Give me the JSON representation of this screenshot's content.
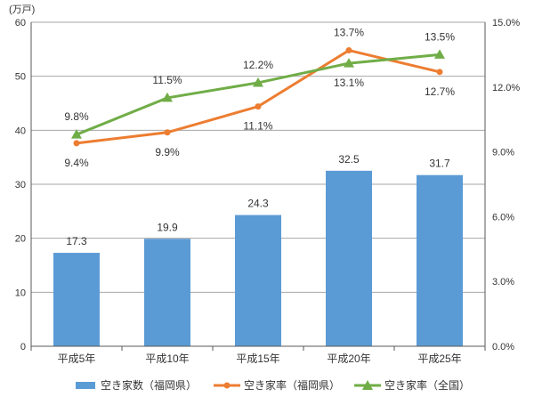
{
  "chart_data": {
    "type": "bar+line",
    "unit_label": "(万戸)",
    "categories": [
      "平成5年",
      "平成10年",
      "平成15年",
      "平成20年",
      "平成25年"
    ],
    "y_left": {
      "min": 0,
      "max": 60,
      "ticks": [
        0,
        10,
        20,
        30,
        40,
        50,
        60
      ]
    },
    "y_right": {
      "min": 0,
      "max": 15,
      "ticks": [
        "0.0%",
        "3.0%",
        "6.0%",
        "9.0%",
        "12.0%",
        "15.0%"
      ]
    },
    "grid": true,
    "legend_position": "bottom",
    "series": [
      {
        "name": "空き家数（福岡県）",
        "kind": "bar",
        "axis": "left",
        "color": "#5B9BD5",
        "values": [
          17.3,
          19.9,
          24.3,
          32.5,
          31.7
        ],
        "labels": [
          "17.3",
          "19.9",
          "24.3",
          "32.5",
          "31.7"
        ]
      },
      {
        "name": "空き家率（福岡県）",
        "kind": "line",
        "axis": "right",
        "marker": "circle",
        "color": "#ED7D31",
        "values": [
          9.4,
          9.9,
          11.1,
          13.7,
          12.7
        ],
        "labels": [
          "9.4%",
          "9.9%",
          "11.1%",
          "13.7%",
          "12.7%"
        ]
      },
      {
        "name": "空き家率（全国）",
        "kind": "line",
        "axis": "right",
        "marker": "triangle",
        "color": "#70AD47",
        "values": [
          9.8,
          11.5,
          12.2,
          13.1,
          13.5
        ],
        "labels": [
          "9.8%",
          "11.5%",
          "12.2%",
          "13.1%",
          "13.5%"
        ]
      }
    ]
  }
}
